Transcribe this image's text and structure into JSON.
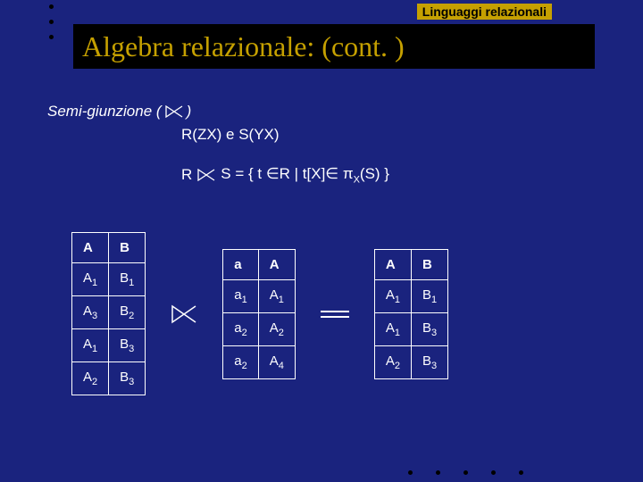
{
  "header_label": "Linguaggi relazionali",
  "title": "Algebra relazionale: (cont. )",
  "line1_prefix": "Semi-giunzione (",
  "line1_suffix": " )",
  "line2": "R(ZX)  e  S(YX)",
  "line3_R": "R",
  "line3_rest": "S = { t ∈R | t[X]∈ π",
  "line3_sub": "X",
  "line3_end": "(S) }",
  "table1": {
    "headers": [
      "A",
      "B"
    ],
    "rows": [
      [
        "A<sub>1</sub>",
        "B<sub>1</sub>"
      ],
      [
        "A<sub>3</sub>",
        "B<sub>2</sub>"
      ],
      [
        "A<sub>1</sub>",
        "B<sub>3</sub>"
      ],
      [
        "A<sub>2</sub>",
        "B<sub>3</sub>"
      ]
    ]
  },
  "table2": {
    "headers": [
      "a",
      "A"
    ],
    "rows": [
      [
        "a<sub>1</sub>",
        "A<sub>1</sub>"
      ],
      [
        "a<sub>2</sub>",
        "A<sub>2</sub>"
      ],
      [
        "a<sub>2</sub>",
        "A<sub>4</sub>"
      ]
    ]
  },
  "table3": {
    "headers": [
      "A",
      "B"
    ],
    "rows": [
      [
        "A<sub>1</sub>",
        "B<sub>1</sub>"
      ],
      [
        "A<sub>1</sub>",
        "B<sub>3</sub>"
      ],
      [
        "A<sub>2</sub>",
        "B<sub>3</sub>"
      ]
    ]
  },
  "colors": {
    "bg": "#1a237e",
    "accent": "#c5a000",
    "text": "#ffffff",
    "black": "#000000"
  }
}
